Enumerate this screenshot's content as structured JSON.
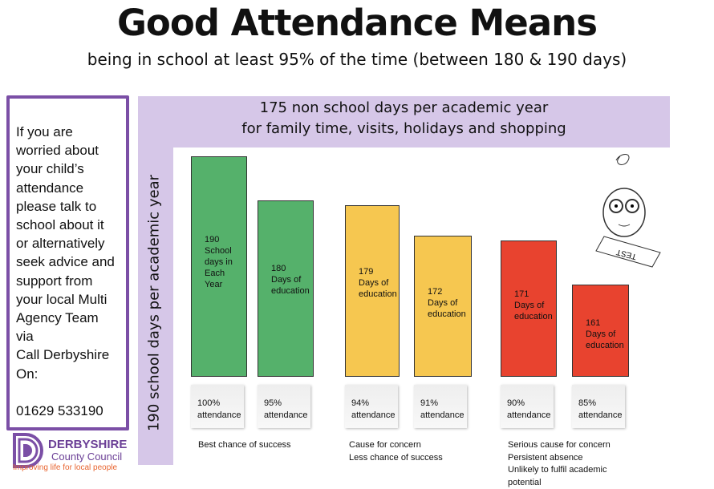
{
  "title": "Good Attendance Means",
  "subtitle": "being in school at least 95% of the time (between 180 & 190 days)",
  "left_box": {
    "message": "If you are\nworried about\nyour child’s\nattendance\nplease talk to\nschool about it\nor alternatively\nseek advice and\nsupport from\nyour local Multi\nAgency Team\nvia\nCall Derbyshire\nOn:",
    "phone": "01629 533190"
  },
  "logo": {
    "name": "DERBYSHIRE",
    "sub": "County Council",
    "tagline": "Improving life for local people"
  },
  "band": {
    "line1": "175 non school days per academic  year",
    "line2": "for family time, visits, holidays and shopping"
  },
  "vertical_label": "190 school days per academic year",
  "colors": {
    "green": "#55b16b",
    "yellow": "#f6c750",
    "red": "#e8432f",
    "purple": "#7b4fa6"
  },
  "chart_data": {
    "type": "bar",
    "categories": [
      "100%",
      "95%",
      "94%",
      "91%",
      "90%",
      "85%"
    ],
    "values": [
      190,
      180,
      179,
      172,
      171,
      161
    ],
    "bar_labels": [
      "190\nSchool\ndays in\nEach\nYear",
      "180\nDays of\neducation",
      "179\nDays of\neducation",
      "172\nDays of\neducation",
      "171\nDays of\neducation",
      "161\nDays of\neducation"
    ],
    "attendance_labels": [
      "100%\nattendance",
      "95%\nattendance",
      "94%\nattendance",
      "91%\nattendance",
      "90%\nattendance",
      "85%\nattendance"
    ],
    "bar_colors": [
      "green",
      "green",
      "yellow",
      "yellow",
      "red",
      "red"
    ],
    "group_notes": [
      "Best chance of success",
      "Cause for concern\nLess chance of success",
      "Serious cause for concern\nPersistent absence\nUnlikely to fulfil academic\npotential"
    ]
  }
}
